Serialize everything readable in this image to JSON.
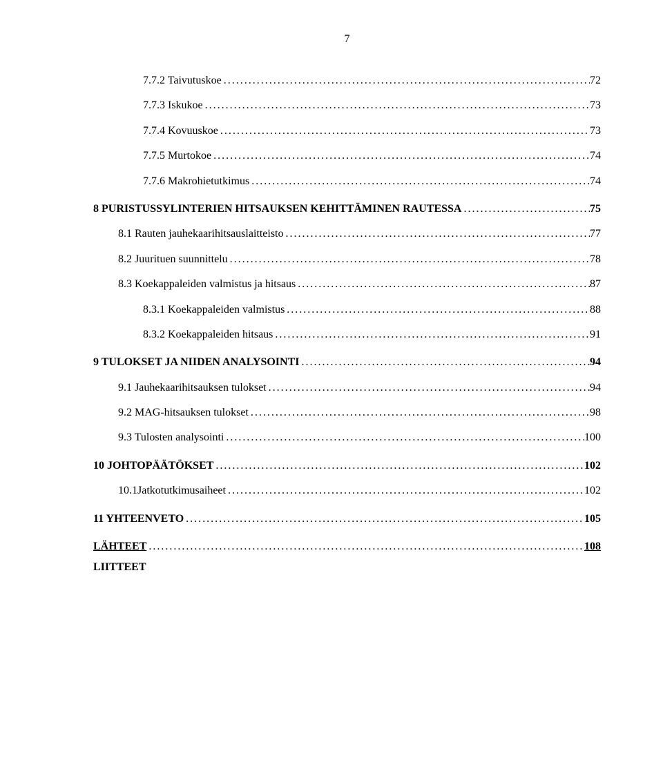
{
  "page_number": "7",
  "entries": [
    {
      "text": "7.7.2 Taivutuskoe",
      "page": "72",
      "indent": 2,
      "bold": false,
      "underline": false,
      "gap": false
    },
    {
      "text": "7.7.3 Iskukoe",
      "page": "73",
      "indent": 2,
      "bold": false,
      "underline": false,
      "gap": false
    },
    {
      "text": "7.7.4 Kovuuskoe",
      "page": "73",
      "indent": 2,
      "bold": false,
      "underline": false,
      "gap": false
    },
    {
      "text": "7.7.5 Murtokoe",
      "page": "74",
      "indent": 2,
      "bold": false,
      "underline": false,
      "gap": false
    },
    {
      "text": "7.7.6 Makrohietutkimus",
      "page": "74",
      "indent": 2,
      "bold": false,
      "underline": false,
      "gap": false
    },
    {
      "text": "8 PURISTUSSYLINTERIEN HITSAUKSEN KEHITTÄMINEN RAUTESSA",
      "page": "75",
      "indent": 0,
      "bold": true,
      "underline": false,
      "gap": true
    },
    {
      "text": "8.1 Rauten jauhekaarihitsauslaitteisto",
      "page": "77",
      "indent": 1,
      "bold": false,
      "underline": false,
      "gap": false
    },
    {
      "text": "8.2 Juurituen suunnittelu",
      "page": "78",
      "indent": 1,
      "bold": false,
      "underline": false,
      "gap": false
    },
    {
      "text": "8.3 Koekappaleiden valmistus ja hitsaus",
      "page": "87",
      "indent": 1,
      "bold": false,
      "underline": false,
      "gap": false
    },
    {
      "text": "8.3.1 Koekappaleiden valmistus",
      "page": "88",
      "indent": 2,
      "bold": false,
      "underline": false,
      "gap": false
    },
    {
      "text": "8.3.2 Koekappaleiden hitsaus",
      "page": "91",
      "indent": 2,
      "bold": false,
      "underline": false,
      "gap": false
    },
    {
      "text": "9 TULOKSET JA NIIDEN ANALYSOINTI",
      "page": "94",
      "indent": 0,
      "bold": true,
      "underline": false,
      "gap": true
    },
    {
      "text": "9.1 Jauhekaarihitsauksen tulokset",
      "page": "94",
      "indent": 1,
      "bold": false,
      "underline": false,
      "gap": false
    },
    {
      "text": "9.2 MAG-hitsauksen tulokset",
      "page": "98",
      "indent": 1,
      "bold": false,
      "underline": false,
      "gap": false
    },
    {
      "text": "9.3 Tulosten analysointi",
      "page": "100",
      "indent": 1,
      "bold": false,
      "underline": false,
      "gap": false
    },
    {
      "text": "10 JOHTOPÄÄTÖKSET",
      "page": "102",
      "indent": 0,
      "bold": true,
      "underline": false,
      "gap": true
    },
    {
      "text": "10.1Jatkotutkimusaiheet",
      "page": "102",
      "indent": 1,
      "bold": false,
      "underline": false,
      "gap": false
    },
    {
      "text": "11 YHTEENVETO",
      "page": "105",
      "indent": 0,
      "bold": true,
      "underline": false,
      "gap": true
    },
    {
      "text": "LÄHTEET",
      "page": "108",
      "indent": 0,
      "bold": true,
      "underline": true,
      "gap": true
    }
  ],
  "liitteet_label": "LIITTEET",
  "dot_fill": "........................................................................................................................................................................................................"
}
